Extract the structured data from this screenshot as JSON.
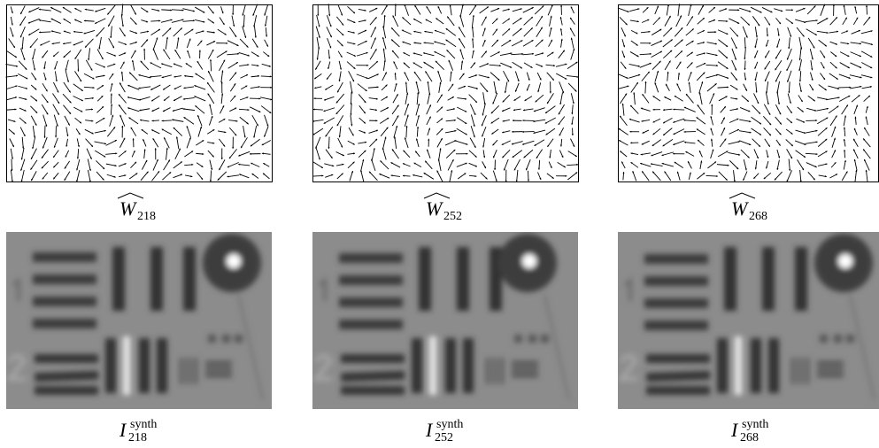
{
  "rows": [
    {
      "panels": [
        {
          "symbol": "W",
          "subscript": "218"
        },
        {
          "symbol": "W",
          "subscript": "252"
        },
        {
          "symbol": "W",
          "subscript": "268"
        }
      ]
    },
    {
      "panels": [
        {
          "symbol": "I",
          "superscript": "synth",
          "subscript": "218"
        },
        {
          "symbol": "I",
          "superscript": "synth",
          "subscript": "252"
        },
        {
          "symbol": "I",
          "superscript": "synth",
          "subscript": "268"
        }
      ]
    }
  ]
}
